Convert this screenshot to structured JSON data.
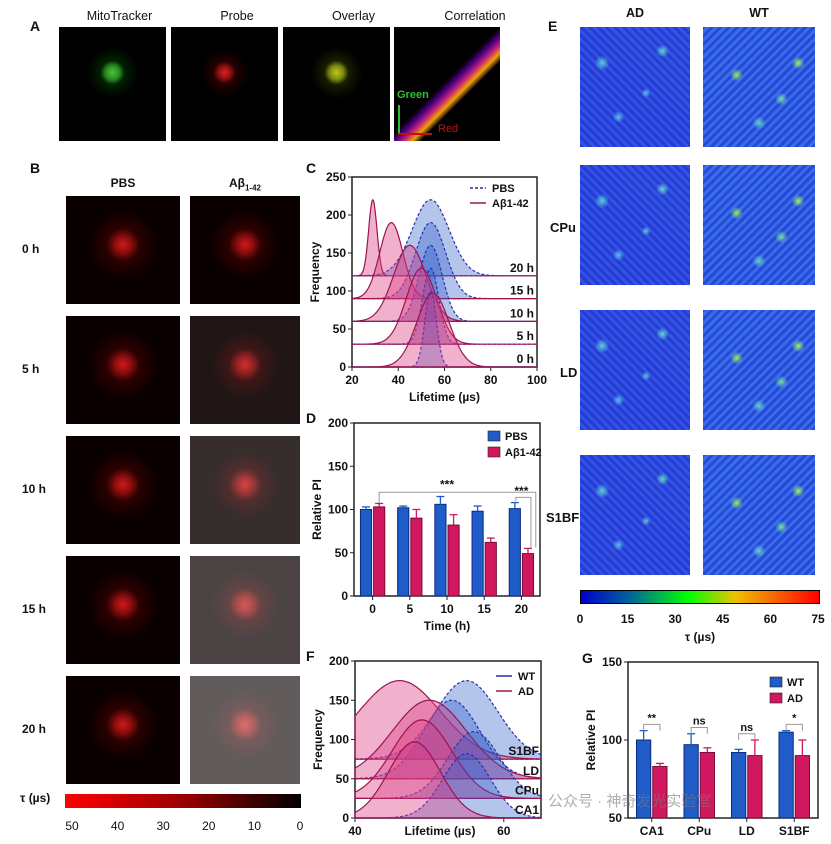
{
  "panel_labels": {
    "A": "A",
    "B": "B",
    "C": "C",
    "D": "D",
    "E": "E",
    "F": "F",
    "G": "G"
  },
  "panelA": {
    "titles": [
      "MitoTracker",
      "Probe",
      "Overlay",
      "Correlation"
    ],
    "correlation_axes": {
      "green": "Green",
      "red": "Red"
    },
    "colors": {
      "green": "#2ec02e",
      "red": "#c01010"
    }
  },
  "panelB": {
    "columns": [
      "PBS",
      "Aβ1-42"
    ],
    "column_base": "Aβ",
    "column_sub": "1-42",
    "rows": [
      "0 h",
      "5 h",
      "10 h",
      "15 h",
      "20 h"
    ],
    "colorbar": {
      "label": "τ (µs)",
      "ticks": [
        "50",
        "40",
        "30",
        "20",
        "10",
        "0"
      ]
    }
  },
  "panelE": {
    "columns": [
      "AD",
      "WT"
    ],
    "rows": [
      "",
      "CPu",
      "LD",
      "S1BF"
    ],
    "colorbar": {
      "label": "τ (µs)",
      "ticks": [
        "0",
        "15",
        "30",
        "45",
        "60",
        "75"
      ]
    }
  },
  "watermark": "公众号 · 神奇发光实验室",
  "chart_data": [
    {
      "panel": "C",
      "type": "area",
      "xlabel": "Lifetime (µs)",
      "ylabel": "Frequency",
      "xlim": [
        20,
        100
      ],
      "ylim": [
        0,
        250
      ],
      "xticks": [
        "20",
        "40",
        "60",
        "80",
        "100"
      ],
      "yticks": [
        "0",
        "50",
        "100",
        "150",
        "200",
        "250"
      ],
      "legend": {
        "placement": "top-right",
        "entries": [
          {
            "name": "PBS",
            "style": "dashed",
            "color": "#2b2fa8"
          },
          {
            "name": "Aβ1-42",
            "style": "solid",
            "color": "#9a1550"
          }
        ]
      },
      "categories": [
        "0 h",
        "5 h",
        "10 h",
        "15 h",
        "20 h"
      ],
      "baselines": [
        0,
        30,
        60,
        90,
        120
      ],
      "series": [
        {
          "name": "PBS",
          "peak_lifetime": [
            54,
            54,
            54,
            54,
            54
          ],
          "peak_frequency": [
            100,
            130,
            160,
            190,
            220
          ]
        },
        {
          "name": "Aβ1-42",
          "peak_lifetime": [
            55,
            50,
            45,
            37,
            29
          ],
          "peak_frequency": [
            97,
            130,
            160,
            190,
            220
          ]
        }
      ]
    },
    {
      "panel": "D",
      "type": "bar",
      "xlabel": "Time (h)",
      "ylabel": "Relative PI",
      "ylim": [
        0,
        200
      ],
      "yticks": [
        "0",
        "50",
        "100",
        "150",
        "200"
      ],
      "categories": [
        "0",
        "5",
        "10",
        "15",
        "20"
      ],
      "legend": {
        "placement": "top-right"
      },
      "series": [
        {
          "name": "PBS",
          "color": "#1f5cc8",
          "values": [
            100,
            102,
            106,
            98,
            101
          ],
          "errors": [
            3,
            2,
            9,
            6,
            7
          ]
        },
        {
          "name": "Aβ1-42",
          "color": "#d0185e",
          "values": [
            103,
            90,
            82,
            62,
            49
          ],
          "errors": [
            4,
            10,
            12,
            5,
            6
          ]
        }
      ],
      "significance": [
        {
          "label": "***",
          "between": "0 h Aβ1-42 vs 20 h Aβ1-42"
        },
        {
          "label": "***",
          "between": "20 h PBS vs 20 h Aβ1-42"
        }
      ]
    },
    {
      "panel": "F",
      "type": "area",
      "xlabel": "Lifetime (µs)",
      "ylabel": "Frequency",
      "xlim": [
        40,
        65
      ],
      "ylim": [
        0,
        200
      ],
      "xticks": [
        "40",
        "60"
      ],
      "yticks": [
        "0",
        "50",
        "100",
        "150",
        "200"
      ],
      "legend": {
        "placement": "top-right",
        "entries": [
          {
            "name": "WT",
            "color": "#2b2fa8"
          },
          {
            "name": "AD",
            "color": "#9a1550"
          }
        ]
      },
      "categories": [
        "CA1",
        "CPu",
        "LD",
        "S1BF"
      ],
      "baselines": [
        0,
        25,
        50,
        75
      ],
      "series": [
        {
          "name": "WT",
          "peak_lifetime": [
            55,
            56,
            53,
            55
          ],
          "peak_frequency": [
            82,
            110,
            150,
            175
          ]
        },
        {
          "name": "AD",
          "peak_lifetime": [
            48,
            49,
            50,
            46
          ],
          "peak_frequency": [
            97,
            125,
            150,
            175
          ]
        }
      ]
    },
    {
      "panel": "G",
      "type": "bar",
      "ylabel": "Relative PI",
      "ylim": [
        50,
        150
      ],
      "yticks": [
        "50",
        "100",
        "150"
      ],
      "categories": [
        "CA1",
        "CPu",
        "LD",
        "S1BF"
      ],
      "legend": {
        "placement": "top-right"
      },
      "series": [
        {
          "name": "WT",
          "color": "#1f5cc8",
          "values": [
            100,
            97,
            92,
            105
          ],
          "errors": [
            6,
            7,
            2,
            1
          ]
        },
        {
          "name": "AD",
          "color": "#d0185e",
          "values": [
            83,
            92,
            90,
            90
          ],
          "errors": [
            2,
            3,
            10,
            10
          ]
        }
      ],
      "significance": [
        "**",
        "ns",
        "ns",
        "*"
      ]
    }
  ]
}
